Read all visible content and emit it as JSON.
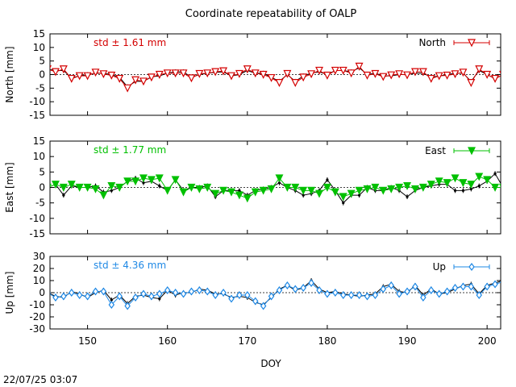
{
  "chart_data": {
    "type": "scatter",
    "title": "Coordinate repeatability of OALP",
    "xlabel": "DOY",
    "xlim": [
      145.3,
      201.7
    ],
    "xticks": [
      150,
      160,
      170,
      180,
      190,
      200
    ],
    "timestamp": "22/07/25 03:07",
    "panels": [
      {
        "ylabel": "North [mm]",
        "ylim": [
          -15,
          15
        ],
        "yticks": [
          -15,
          -10,
          -5,
          0,
          5,
          10,
          15
        ],
        "std_label": "std ± 1.61 mm",
        "legend": "North",
        "color": "#d40000",
        "marker": "triangle-down-open",
        "legend_position": "top-right",
        "series": [
          {
            "x": [
              145,
              146,
              147,
              148,
              149,
              150,
              151,
              152,
              153,
              154,
              155,
              156,
              157,
              158,
              159,
              160,
              161,
              162,
              163,
              164,
              165,
              166,
              167,
              168,
              169,
              170,
              171,
              172,
              173,
              174,
              175,
              176,
              177,
              178,
              179,
              180,
              181,
              182,
              183,
              184,
              185,
              186,
              187,
              188,
              189,
              190,
              191,
              192,
              193,
              194,
              195,
              196,
              197,
              198,
              199,
              200,
              201,
              202
            ],
            "y": [
              2,
              1.5,
              1.5,
              -1.2,
              -0.5,
              0,
              0.5,
              0.5,
              0,
              -1,
              -4.5,
              -2.5,
              -2.5,
              -0.8,
              -0.5,
              0.5,
              1,
              1,
              -1,
              0,
              0.5,
              0.8,
              1,
              -0.5,
              0,
              1.5,
              0.5,
              0.5,
              -1,
              -2.5,
              0,
              -2.5,
              -0.5,
              0.5,
              1,
              0,
              1.5,
              1.5,
              1,
              2.5,
              0,
              0.5,
              -0.5,
              -0.5,
              0,
              0,
              0.5,
              0.5,
              -1,
              -0.5,
              0,
              0.5,
              0.5,
              -2.5,
              1.5,
              0,
              -1.5,
              0
            ]
          },
          {
            "x": [
              145,
              146,
              147,
              148,
              149,
              150,
              151,
              152,
              153,
              154,
              155,
              156,
              157,
              158,
              159,
              160,
              161,
              162,
              163,
              164,
              165,
              166,
              167,
              168,
              169,
              170,
              171,
              172,
              173,
              174,
              175,
              176,
              177,
              178,
              179,
              180,
              181,
              182,
              183,
              184,
              185,
              186,
              187,
              188,
              189,
              190,
              191,
              192,
              193,
              194,
              195,
              196,
              197,
              198,
              199,
              200,
              201,
              202
            ],
            "y": [
              2,
              1,
              2,
              -1.5,
              -0.5,
              -0.5,
              0.8,
              0.2,
              -0.3,
              -1.5,
              -5,
              -2,
              -2.5,
              -1,
              0,
              0.5,
              0.5,
              0.5,
              -1.3,
              0.3,
              0.5,
              1,
              1.3,
              -0.5,
              0.3,
              2,
              0.5,
              0,
              -1.2,
              -3,
              0.3,
              -3,
              -1,
              0.2,
              1.5,
              -0.3,
              1.5,
              1.5,
              0.5,
              3,
              -0.3,
              0.3,
              -0.8,
              -0.2,
              0.2,
              -0.2,
              1,
              1,
              -1.5,
              -0.5,
              -0.3,
              0.2,
              0.8,
              -3,
              2,
              0,
              -1.5,
              0
            ]
          }
        ]
      },
      {
        "ylabel": "East [mm]",
        "ylim": [
          -15,
          15
        ],
        "yticks": [
          -15,
          -10,
          -5,
          0,
          5,
          10,
          15
        ],
        "std_label": "std ± 1.77 mm",
        "legend": "East",
        "color": "#00c000",
        "marker": "triangle-down-filled",
        "legend_position": "top-right",
        "series": [
          {
            "x": [
              145,
              146,
              147,
              148,
              149,
              150,
              151,
              152,
              153,
              154,
              155,
              156,
              157,
              158,
              159,
              160,
              161,
              162,
              163,
              164,
              165,
              166,
              167,
              168,
              169,
              170,
              171,
              172,
              173,
              174,
              175,
              176,
              177,
              178,
              179,
              180,
              181,
              182,
              183,
              184,
              185,
              186,
              187,
              188,
              189,
              190,
              191,
              192,
              193,
              194,
              195,
              196,
              197,
              198,
              199,
              200,
              201,
              202
            ],
            "y": [
              0,
              1,
              -2.5,
              0.5,
              0,
              0,
              0.5,
              -1.5,
              -1,
              0,
              2,
              3,
              1.5,
              2,
              0.5,
              -1,
              2.5,
              -1,
              0,
              0,
              0.5,
              -3,
              -1,
              -1,
              -1,
              -2.5,
              -1,
              -0.5,
              0,
              1.5,
              0,
              -1,
              -2.5,
              -2,
              -1,
              2.5,
              -1,
              -5,
              -2.5,
              -2.5,
              0,
              -1,
              -1,
              0,
              -1,
              -3,
              -1,
              0,
              0.5,
              1,
              1,
              -1,
              -1,
              -0.5,
              0.5,
              2,
              4.5,
              0
            ]
          },
          {
            "x": [
              145,
              146,
              147,
              148,
              149,
              150,
              151,
              152,
              153,
              154,
              155,
              156,
              157,
              158,
              159,
              160,
              161,
              162,
              163,
              164,
              165,
              166,
              167,
              168,
              169,
              170,
              171,
              172,
              173,
              174,
              175,
              176,
              177,
              178,
              179,
              180,
              181,
              182,
              183,
              184,
              185,
              186,
              187,
              188,
              189,
              190,
              191,
              192,
              193,
              194,
              195,
              196,
              197,
              198,
              199,
              200,
              201,
              202
            ],
            "y": [
              0,
              1,
              0,
              1,
              0,
              0,
              -0.5,
              -2.5,
              0.5,
              0,
              2,
              2,
              3,
              2.5,
              3,
              -1,
              2.5,
              -1.5,
              0,
              -0.5,
              0,
              -2,
              -1,
              -1.5,
              -2.5,
              -3.5,
              -1.5,
              -1,
              -0.5,
              3,
              0,
              0,
              -1,
              -1,
              -2,
              0,
              -1.5,
              -3,
              -2,
              -1,
              -0.5,
              0,
              -1,
              -0.5,
              0,
              0.5,
              -0.5,
              0,
              1,
              2,
              1.5,
              3,
              1.5,
              1,
              3.5,
              2.5,
              0,
              0
            ]
          }
        ]
      },
      {
        "ylabel": "Up [mm]",
        "ylim": [
          -30,
          30
        ],
        "yticks": [
          -30,
          -20,
          -10,
          0,
          10,
          20,
          30
        ],
        "std_label": "std ± 4.36 mm",
        "legend": "Up",
        "color": "#1e88e5",
        "marker": "diamond-open",
        "legend_position": "top-right",
        "series": [
          {
            "x": [
              145,
              146,
              147,
              148,
              149,
              150,
              151,
              152,
              153,
              154,
              155,
              156,
              157,
              158,
              159,
              160,
              161,
              162,
              163,
              164,
              165,
              166,
              167,
              168,
              169,
              170,
              171,
              172,
              173,
              174,
              175,
              176,
              177,
              178,
              179,
              180,
              181,
              182,
              183,
              184,
              185,
              186,
              187,
              188,
              189,
              190,
              191,
              192,
              193,
              194,
              195,
              196,
              197,
              198,
              199,
              200,
              201,
              202
            ],
            "y": [
              0,
              -3,
              -4,
              1,
              -1,
              -4,
              0,
              2,
              -6,
              -2,
              -9,
              -3,
              -2,
              -4,
              -5,
              2,
              -2,
              0,
              0,
              3,
              2,
              -1,
              -1,
              -4,
              -3,
              -4,
              -8,
              -10,
              -4,
              3,
              6,
              2,
              4,
              10,
              3,
              0,
              1,
              -1,
              -2,
              -3,
              -2,
              -1,
              5,
              7,
              1,
              0,
              6,
              -2,
              3,
              -1,
              0,
              3,
              6,
              7,
              -1,
              6,
              8,
              10
            ]
          },
          {
            "x": [
              145,
              146,
              147,
              148,
              149,
              150,
              151,
              152,
              153,
              154,
              155,
              156,
              157,
              158,
              159,
              160,
              161,
              162,
              163,
              164,
              165,
              166,
              167,
              168,
              169,
              170,
              171,
              172,
              173,
              174,
              175,
              176,
              177,
              178,
              179,
              180,
              181,
              182,
              183,
              184,
              185,
              186,
              187,
              188,
              189,
              190,
              191,
              192,
              193,
              194,
              195,
              196,
              197,
              198,
              199,
              200,
              201,
              202
            ],
            "y": [
              0,
              -4,
              -3,
              0,
              -2,
              -3,
              1,
              1,
              -10,
              -3,
              -11,
              -4,
              -1,
              -3,
              -1,
              2,
              0,
              -1,
              1,
              2,
              1,
              -2,
              0,
              -5,
              -2,
              -2,
              -7,
              -11,
              -3,
              2,
              6,
              3,
              4,
              8,
              2,
              -1,
              0,
              -2,
              -2,
              -2,
              -3,
              -2,
              3,
              6,
              -1,
              1,
              5,
              -4,
              2,
              -1,
              1,
              4,
              5,
              5,
              -2,
              5,
              7,
              9
            ]
          }
        ]
      }
    ]
  }
}
